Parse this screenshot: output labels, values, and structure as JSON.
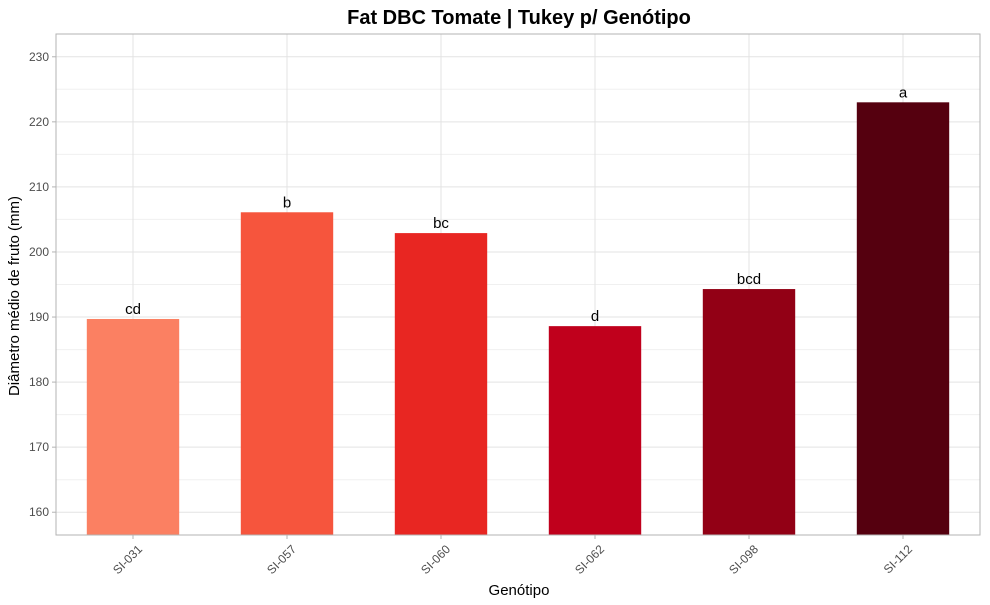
{
  "chart_data": {
    "type": "bar",
    "title": "Fat DBC Tomate | Tukey p/ Genótipo",
    "xlabel": "Genótipo",
    "ylabel": "Diâmetro médio de fruto (mm)",
    "categories": [
      "SI-031",
      "SI-057",
      "SI-060",
      "SI-062",
      "SI-098",
      "SI-112"
    ],
    "values": [
      189.7,
      206.1,
      202.9,
      188.6,
      194.3,
      223.0
    ],
    "letters": [
      "cd",
      "b",
      "bc",
      "d",
      "bcd",
      "a"
    ],
    "colors": [
      "#fb8062",
      "#f6553d",
      "#e82622",
      "#c0001c",
      "#920015",
      "#55000f"
    ],
    "ylim": [
      156.5,
      233.5
    ],
    "yticks": [
      160,
      170,
      180,
      190,
      200,
      210,
      220,
      230
    ],
    "grid": true,
    "legend": "none"
  }
}
